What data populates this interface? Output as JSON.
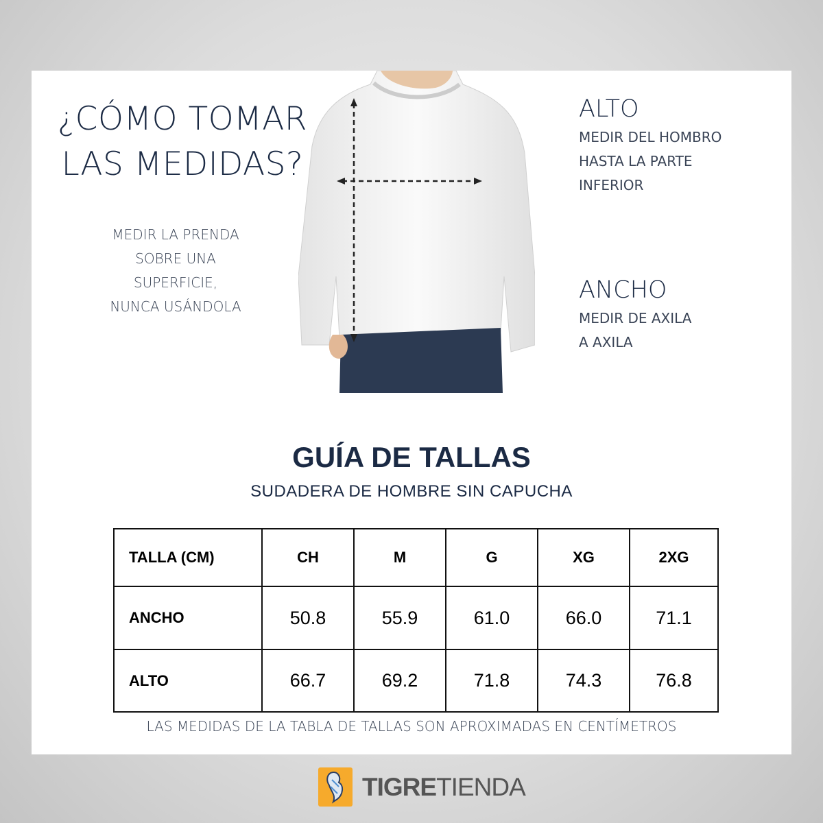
{
  "howto": {
    "title_line1": "¿CÓMO TOMAR",
    "title_line2": "LAS MEDIDAS?",
    "note": [
      "MEDIR LA PRENDA",
      "SOBRE UNA",
      "SUPERFICIE,",
      "NUNCA USÁNDOLA"
    ]
  },
  "alto": {
    "label": "ALTO",
    "desc": [
      "MEDIR DEL HOMBRO",
      "HASTA LA PARTE",
      "INFERIOR"
    ]
  },
  "ancho": {
    "label": "ANCHO",
    "desc": [
      "MEDIR DE AXILA",
      "A AXILA"
    ]
  },
  "guide": {
    "title": "GUÍA DE TALLAS",
    "subtitle": "SUDADERA DE HOMBRE SIN CAPUCHA"
  },
  "table": {
    "headers": [
      "TALLA (CM)",
      "CH",
      "M",
      "G",
      "XG",
      "2XG"
    ],
    "rows": [
      {
        "label": "ANCHO",
        "values": [
          "50.8",
          "55.9",
          "61.0",
          "66.0",
          "71.1"
        ]
      },
      {
        "label": "ALTO",
        "values": [
          "66.7",
          "69.2",
          "71.8",
          "74.3",
          "76.8"
        ]
      }
    ]
  },
  "footnote": "LAS MEDIDAS DE LA TABLA DE TALLAS SON APROXIMADAS EN CENTÍMETROS",
  "logo": {
    "bold": "TIGRE",
    "light": "TIENDA",
    "color": "#f6aa2c"
  },
  "colors": {
    "navy": "#1b2a44"
  }
}
